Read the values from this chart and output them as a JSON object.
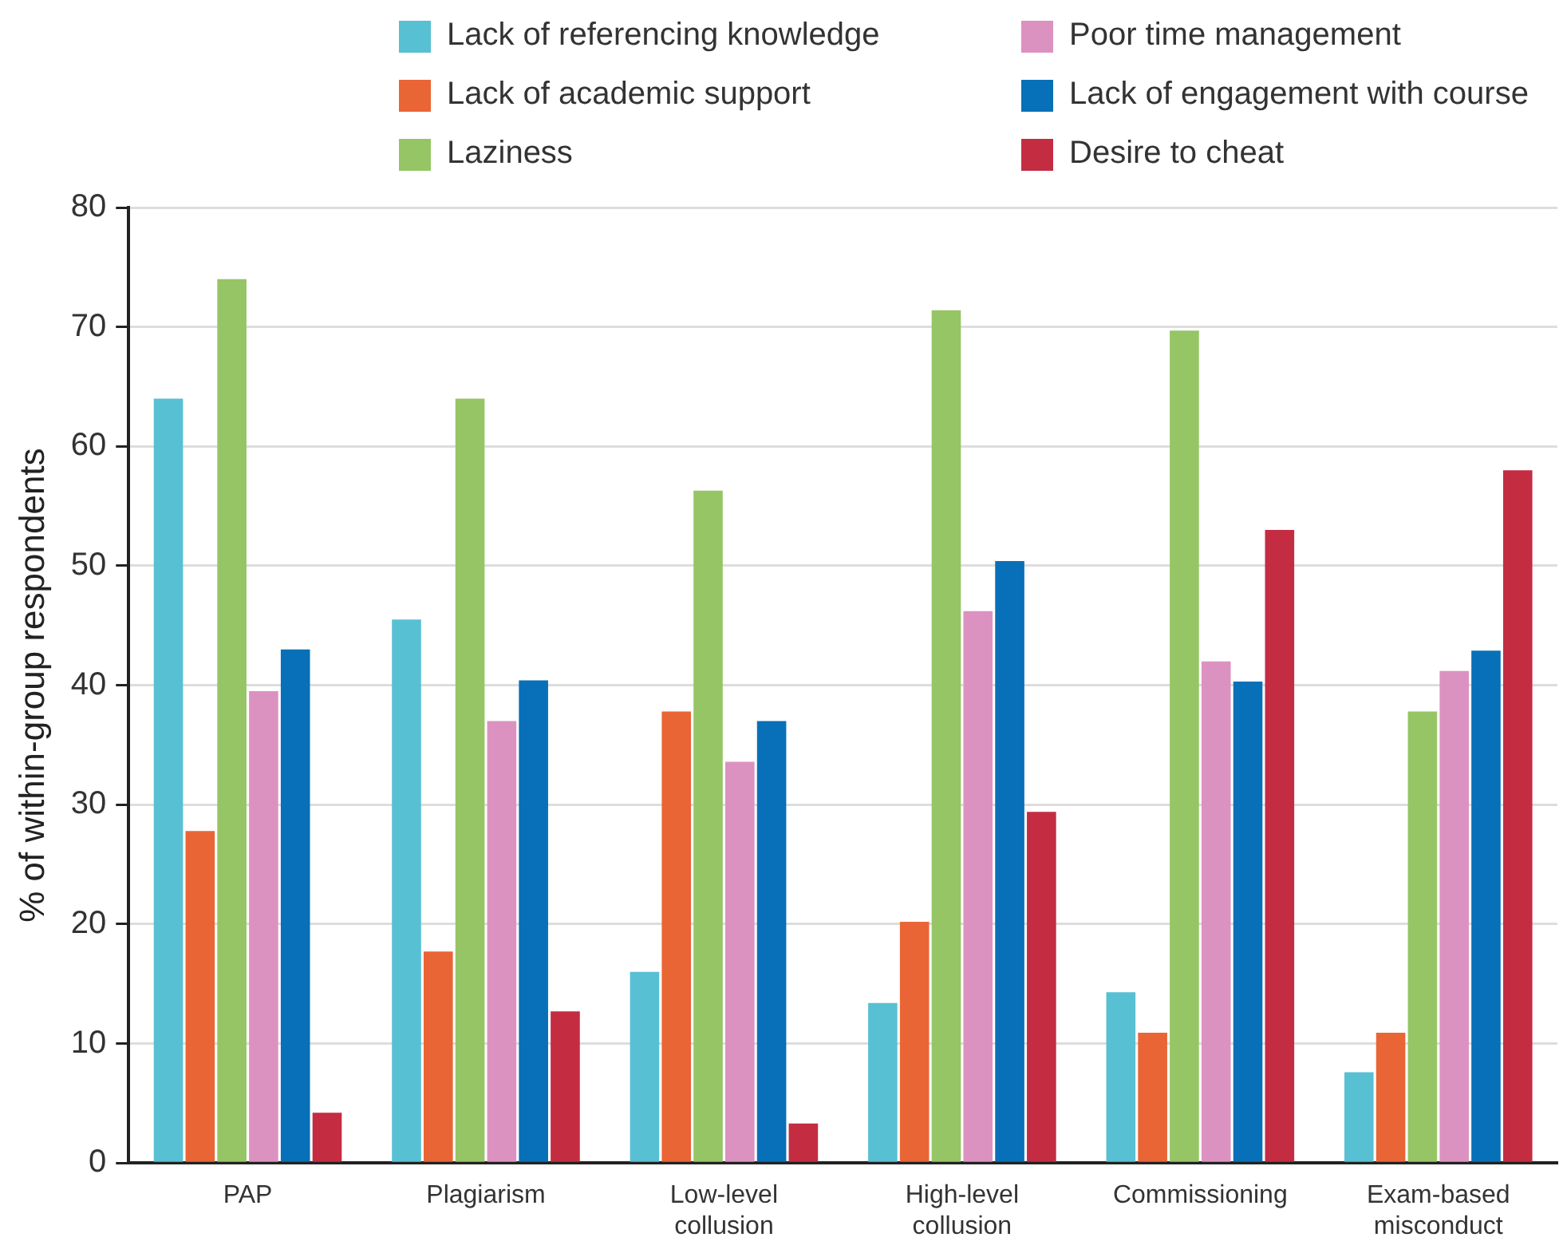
{
  "chart_data": {
    "type": "bar",
    "ylabel": "% of within-group respondents",
    "categories": [
      "PAP",
      "Plagiarism",
      "Low-level collusion",
      "High-level collusion",
      "Commissioning",
      "Exam-based misconduct"
    ],
    "series": [
      {
        "name": "Lack of referencing knowledge",
        "color": "#58c0d3",
        "values": [
          64,
          45.5,
          16,
          13.4,
          14.3,
          7.6
        ]
      },
      {
        "name": "Lack of academic support",
        "color": "#ea6535",
        "values": [
          27.8,
          17.7,
          37.8,
          20.2,
          10.9,
          10.9
        ]
      },
      {
        "name": "Laziness",
        "color": "#96c565",
        "values": [
          74,
          64,
          56.3,
          71.4,
          69.7,
          37.8
        ]
      },
      {
        "name": "Poor time management",
        "color": "#dc92c0",
        "values": [
          39.5,
          37,
          33.6,
          46.2,
          42,
          41.2
        ]
      },
      {
        "name": "Lack of engagement with course",
        "color": "#0870b8",
        "values": [
          43,
          40.4,
          37,
          50.4,
          40.3,
          42.9
        ]
      },
      {
        "name": "Desire to cheat",
        "color": "#c42c42",
        "values": [
          4.2,
          12.7,
          3.3,
          29.4,
          53,
          58
        ]
      }
    ],
    "ylim": [
      0,
      80
    ],
    "yticks": [
      0,
      10,
      20,
      30,
      40,
      50,
      60,
      70,
      80
    ],
    "grid": "y",
    "legend": "top"
  }
}
